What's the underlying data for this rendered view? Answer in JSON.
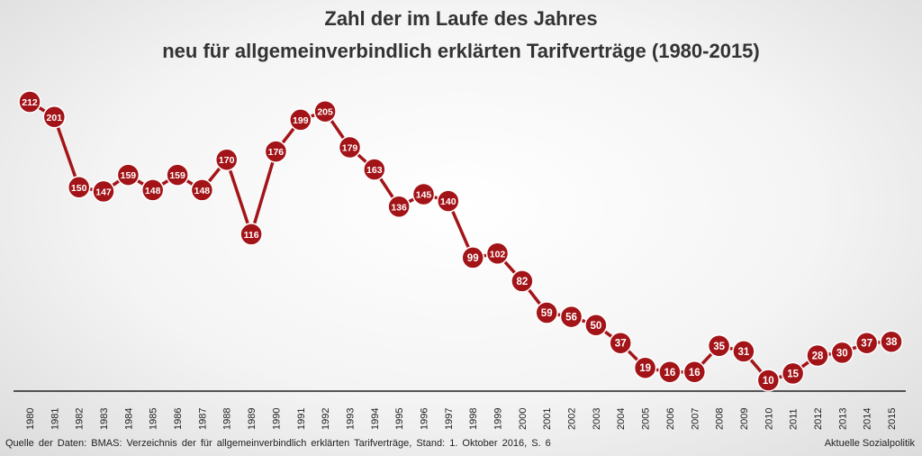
{
  "chart_data": {
    "type": "line",
    "title": "Zahl der im Laufe des Jahres",
    "subtitle": "neu für allgemeinverbindlich erklärten Tarifverträge (1980-2015)",
    "categories": [
      "1980",
      "1981",
      "1982",
      "1983",
      "1984",
      "1985",
      "1986",
      "1987",
      "1988",
      "1989",
      "1990",
      "1991",
      "1992",
      "1993",
      "1994",
      "1995",
      "1996",
      "1997",
      "1998",
      "1999",
      "2000",
      "2001",
      "2002",
      "2003",
      "2004",
      "2005",
      "2006",
      "2007",
      "2008",
      "2009",
      "2010",
      "2011",
      "2012",
      "2013",
      "2014",
      "2015"
    ],
    "series": [
      {
        "values": [
          212,
          201,
          150,
          147,
          159,
          148,
          159,
          148,
          170,
          116,
          176,
          199,
          205,
          179,
          163,
          136,
          145,
          140,
          99,
          102,
          82,
          59,
          56,
          50,
          37,
          19,
          16,
          16,
          35,
          31,
          10,
          15,
          28,
          30,
          37,
          38
        ]
      }
    ],
    "ylim": [
      0,
      225
    ],
    "grid": false,
    "colors": {
      "line": "#a31418",
      "marker": "#a31418",
      "marker_border": "#ffffff",
      "axis": "#222222"
    }
  },
  "footer": {
    "source": "Quelle der Daten: BMAS: Verzeichnis der für allgemeinverbindlich erklärten Tarifverträge, Stand: 1. Oktober 2016, S. 6",
    "credit": "Aktuelle Sozialpolitik"
  }
}
